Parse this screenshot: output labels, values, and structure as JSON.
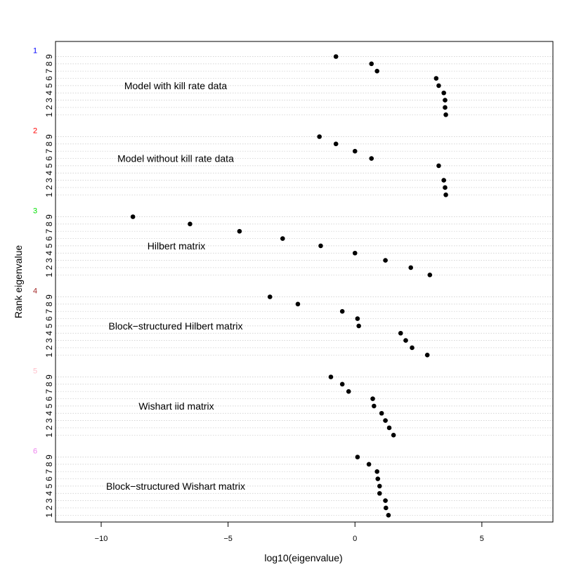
{
  "chart_data": {
    "type": "scatter",
    "xlabel": "log10(eigenvalue)",
    "ylabel": "Rank eigenvalue",
    "xlim": [
      -11.8,
      7.8
    ],
    "xticks": [
      -10,
      -5,
      0,
      5
    ],
    "xtick_labels": [
      "−10",
      "−5",
      "0",
      "5"
    ],
    "grid": "dotted horizontal",
    "groups": [
      {
        "number": "1",
        "color": "#0000ff",
        "label": "Model with kill rate data",
        "ranks": [
          "9",
          "8",
          "7",
          "6",
          "5",
          "4",
          "3",
          "2",
          "1"
        ],
        "values": [
          -0.75,
          0.65,
          0.87,
          3.2,
          3.3,
          3.5,
          3.55,
          3.55,
          3.58
        ]
      },
      {
        "number": "2",
        "color": "#ff0000",
        "label": "Model without kill rate data",
        "ranks": [
          "9",
          "8",
          "7",
          "6",
          "5",
          "4",
          "3",
          "2",
          "1"
        ],
        "values": [
          -1.4,
          -0.75,
          0.0,
          0.65,
          3.3,
          null,
          3.5,
          3.55,
          3.58
        ]
      },
      {
        "number": "3",
        "color": "#00e000",
        "label": "Hilbert matrix",
        "ranks": [
          "9",
          "8",
          "7",
          "6",
          "5",
          "4",
          "3",
          "2",
          "1"
        ],
        "values": [
          -8.75,
          -6.5,
          -4.55,
          -2.85,
          -1.35,
          0.0,
          1.2,
          2.2,
          2.95
        ]
      },
      {
        "number": "4",
        "color": "#a52a2a",
        "label": "Block−structured Hilbert matrix",
        "ranks": [
          "9",
          "8",
          "7",
          "6",
          "5",
          "4",
          "3",
          "2",
          "1"
        ],
        "values": [
          -3.35,
          -2.25,
          -0.5,
          0.1,
          0.15,
          1.8,
          2.0,
          2.25,
          2.85
        ]
      },
      {
        "number": "5",
        "color": "#ffc0cb",
        "label": "Wishart iid matrix",
        "ranks": [
          "9",
          "8",
          "7",
          "6",
          "5",
          "4",
          "3",
          "2",
          "1"
        ],
        "values": [
          -0.95,
          -0.5,
          -0.25,
          0.7,
          0.75,
          1.05,
          1.2,
          1.35,
          1.52
        ]
      },
      {
        "number": "6",
        "color": "#ee82ee",
        "label": "Block−structured Wishart matrix",
        "ranks": [
          "9",
          "8",
          "7",
          "6",
          "5",
          "4",
          "3",
          "2",
          "1"
        ],
        "values": [
          0.1,
          0.55,
          0.87,
          0.9,
          0.97,
          0.97,
          1.2,
          1.22,
          1.32
        ]
      }
    ]
  }
}
